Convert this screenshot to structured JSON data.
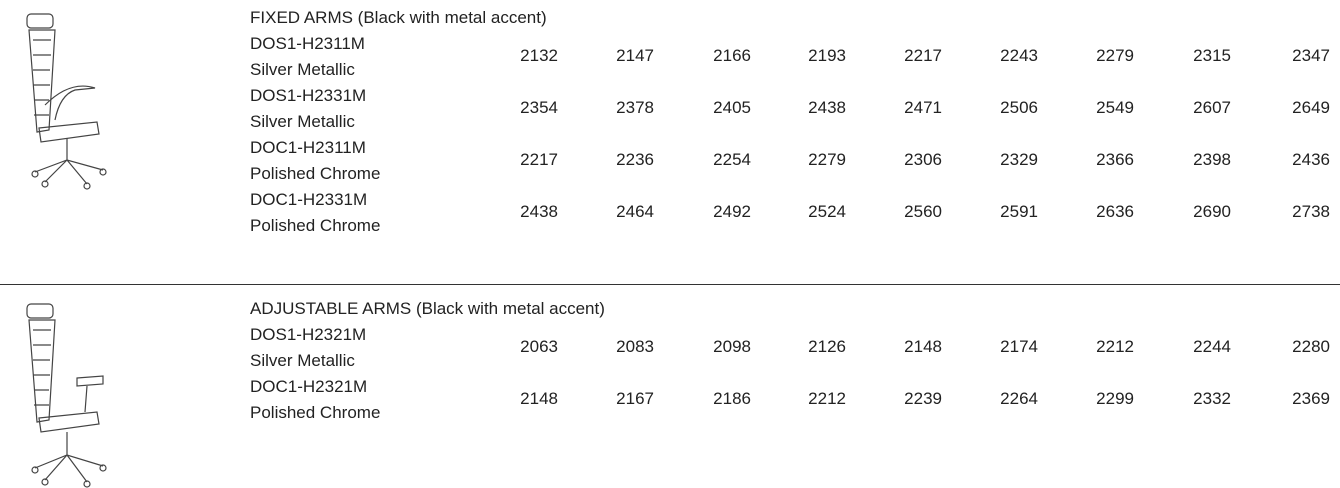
{
  "sections": [
    {
      "heading": "FIXED ARMS (Black with metal accent)",
      "rows": [
        {
          "code": "DOS1-H2311M",
          "finish": "Silver Metallic",
          "prices": [
            2132,
            2147,
            2166,
            2193,
            2217,
            2243,
            2279,
            2315,
            2347
          ]
        },
        {
          "code": "DOS1-H2331M",
          "finish": "Silver Metallic",
          "prices": [
            2354,
            2378,
            2405,
            2438,
            2471,
            2506,
            2549,
            2607,
            2649
          ]
        },
        {
          "code": "DOC1-H2311M",
          "finish": "Polished Chrome",
          "prices": [
            2217,
            2236,
            2254,
            2279,
            2306,
            2329,
            2366,
            2398,
            2436
          ]
        },
        {
          "code": "DOC1-H2331M",
          "finish": "Polished Chrome",
          "prices": [
            2438,
            2464,
            2492,
            2524,
            2560,
            2591,
            2636,
            2690,
            2738
          ]
        }
      ]
    },
    {
      "heading": "ADJUSTABLE ARMS (Black with metal accent)",
      "rows": [
        {
          "code": "DOS1-H2321M",
          "finish": "Silver Metallic",
          "prices": [
            2063,
            2083,
            2098,
            2126,
            2148,
            2174,
            2212,
            2244,
            2280
          ]
        },
        {
          "code": "DOC1-H2321M",
          "finish": "Polished Chrome",
          "prices": [
            2148,
            2167,
            2186,
            2212,
            2239,
            2264,
            2299,
            2332,
            2369
          ]
        }
      ]
    }
  ]
}
